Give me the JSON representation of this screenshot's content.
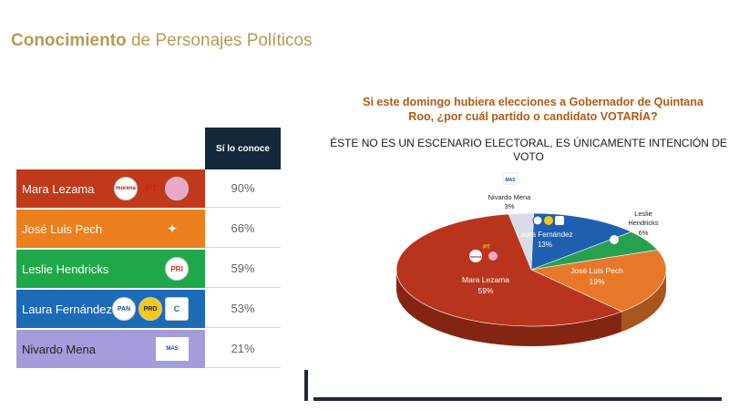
{
  "left": {
    "title_bold": "Conocimiento",
    "title_rest": " de Personajes Políticos",
    "column_header": "Sí lo conoce",
    "rows": [
      {
        "name": "Mara Lezama",
        "value": "90%",
        "color": "#c0391b",
        "logos": [
          "morena",
          "PT",
          "verde"
        ]
      },
      {
        "name": "José Luis Pech",
        "value": "66%",
        "color": "#ec7f1e",
        "logos": [
          "movimiento-ciudadano"
        ]
      },
      {
        "name": "Leslie Hendricks",
        "value": "59%",
        "color": "#1fa84a",
        "logos": [
          "PRI"
        ]
      },
      {
        "name": "Laura Fernández",
        "value": "53%",
        "color": "#1d6bb6",
        "logos": [
          "PAN",
          "PRD",
          "confianza"
        ]
      },
      {
        "name": "Nivardo Mena",
        "value": "21%",
        "color": "#a39ddc",
        "logos": [
          "MAS"
        ]
      }
    ]
  },
  "right": {
    "title_line1": "Si este domingo hubiera elecciones a Gobernador de Quintana",
    "title_line2": "Roo, ¿por cuál partido o candidato VOTARÍA?",
    "subtitle": "ÉSTE NO ES UN ESCENARIO ELECTORAL, ES ÚNICAMENTE INTENCIÓN DE VOTO"
  },
  "chart_data": {
    "type": "pie",
    "title": "Si este domingo hubiera elecciones a Gobernador de Quintana Roo, ¿por cuál partido o candidato VOTARÍA?",
    "slices": [
      {
        "label": "Mara Lezama",
        "value": 59,
        "color": "#b8341c"
      },
      {
        "label": "José Luis Pech",
        "value": 19,
        "color": "#e7782a"
      },
      {
        "label": "Leslie Hendricks",
        "value": 6,
        "color": "#27a14f"
      },
      {
        "label": "Laura Fernández",
        "value": 13,
        "color": "#1f5fb0"
      },
      {
        "label": "Nivardo Mena",
        "value": 3,
        "color": "#d9dce6"
      }
    ],
    "labels": {
      "mara": [
        "Mara Lezama",
        "59%"
      ],
      "pech": [
        "José Luis Pech",
        "19%"
      ],
      "leslie": [
        "Leslie",
        "Hendricks",
        "6%"
      ],
      "laura": [
        "Laura Fernández",
        "13%"
      ],
      "nivardo": [
        "Nivardo Mena",
        "3%"
      ]
    },
    "logo_texts": {
      "morena": "morena",
      "pt": "PT",
      "mas": "MAS"
    }
  }
}
